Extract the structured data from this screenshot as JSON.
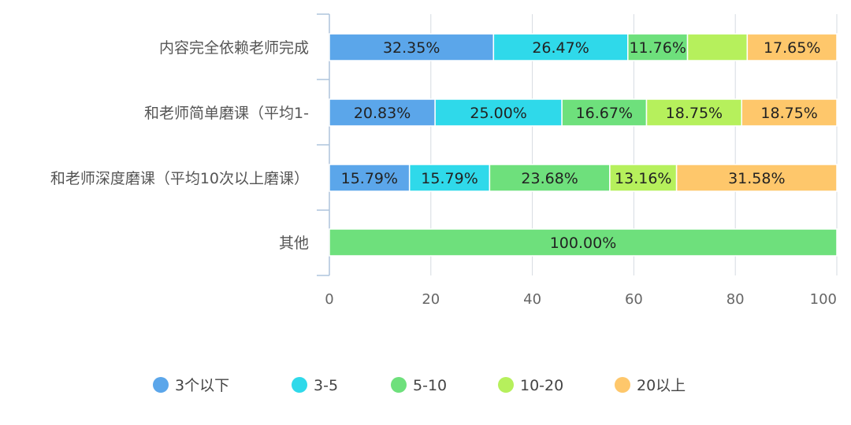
{
  "chart_data": {
    "type": "bar",
    "orientation": "horizontal",
    "stacked": true,
    "categories": [
      "内容完全依赖老师完成",
      "和老师简单磨课（平均1-",
      "和老师深度磨课（平均10次以上磨课）",
      "其他"
    ],
    "series": [
      {
        "name": "3个以下",
        "color": "#5ba6ea",
        "values": [
          32.35,
          20.83,
          15.79,
          0
        ]
      },
      {
        "name": "3-5",
        "color": "#2fd9ea",
        "values": [
          26.47,
          25.0,
          15.79,
          0
        ]
      },
      {
        "name": "5-10",
        "color": "#6ee07c",
        "values": [
          11.76,
          16.67,
          23.68,
          100.0
        ]
      },
      {
        "name": "10-20",
        "color": "#b6f05c",
        "values": [
          11.77,
          18.75,
          13.16,
          0
        ]
      },
      {
        "name": "20以上",
        "color": "#fec76b",
        "values": [
          17.65,
          18.75,
          31.58,
          0
        ]
      }
    ],
    "data_labels": [
      [
        "32.35%",
        "26.47%",
        "11.76%",
        "",
        "17.65%"
      ],
      [
        "20.83%",
        "25.00%",
        "16.67%",
        "18.75%",
        "18.75%"
      ],
      [
        "15.79%",
        "15.79%",
        "23.68%",
        "13.16%",
        "31.58%"
      ],
      [
        "",
        "",
        "100.00%",
        "",
        ""
      ]
    ],
    "x_ticks": [
      "0",
      "20",
      "40",
      "60",
      "80",
      "100"
    ],
    "xlim": [
      0,
      100
    ],
    "grid": true,
    "legend_position": "bottom",
    "title": "",
    "xlabel": "",
    "ylabel": ""
  }
}
